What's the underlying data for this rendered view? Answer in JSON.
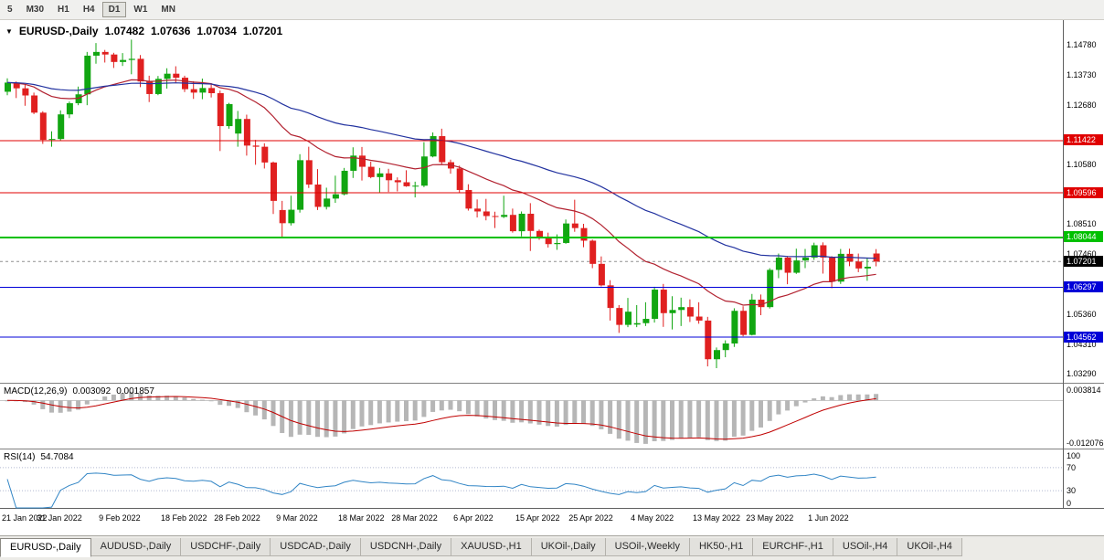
{
  "toolbar": {
    "buttons": [
      "5",
      "M30",
      "H1",
      "H4",
      "D1",
      "W1",
      "MN"
    ],
    "active": "D1"
  },
  "chart_header": {
    "dropdown_icon": "▼",
    "symbol": "EURUSD-,Daily",
    "open": "1.07482",
    "high": "1.07636",
    "low": "1.07034",
    "close": "1.07201"
  },
  "chart_data": {
    "type": "candlestick",
    "title": "EURUSD-,Daily",
    "colors": {
      "up": "#11A611",
      "down": "#E02020"
    },
    "candles": [
      [
        1.1313,
        1.136,
        1.1301,
        1.1345
      ],
      [
        1.1345,
        1.1349,
        1.1291,
        1.1325
      ],
      [
        1.1325,
        1.1338,
        1.1264,
        1.13
      ],
      [
        1.13,
        1.131,
        1.1235,
        1.124
      ],
      [
        1.124,
        1.1245,
        1.1131,
        1.1145
      ],
      [
        1.1145,
        1.1175,
        1.1121,
        1.1148
      ],
      [
        1.1148,
        1.1248,
        1.1141,
        1.1234
      ],
      [
        1.1234,
        1.1279,
        1.1221,
        1.1273
      ],
      [
        1.1273,
        1.1331,
        1.1266,
        1.1304
      ],
      [
        1.1304,
        1.1452,
        1.1266,
        1.1439
      ],
      [
        1.1439,
        1.1483,
        1.1411,
        1.1452
      ],
      [
        1.1452,
        1.1459,
        1.1415,
        1.1443
      ],
      [
        1.1443,
        1.1449,
        1.1396,
        1.1417
      ],
      [
        1.1417,
        1.1448,
        1.1403,
        1.1424
      ],
      [
        1.1424,
        1.1495,
        1.1374,
        1.1428
      ],
      [
        1.1428,
        1.1441,
        1.1329,
        1.1349
      ],
      [
        1.1349,
        1.1369,
        1.1277,
        1.1305
      ],
      [
        1.1305,
        1.1368,
        1.1301,
        1.1358
      ],
      [
        1.1358,
        1.1395,
        1.1324,
        1.1376
      ],
      [
        1.1376,
        1.1402,
        1.1345,
        1.1362
      ],
      [
        1.1362,
        1.1369,
        1.1312,
        1.1322
      ],
      [
        1.1322,
        1.135,
        1.1288,
        1.131
      ],
      [
        1.131,
        1.1359,
        1.1287,
        1.1326
      ],
      [
        1.1326,
        1.1342,
        1.1293,
        1.1308
      ],
      [
        1.1308,
        1.1317,
        1.1106,
        1.1193
      ],
      [
        1.1193,
        1.1274,
        1.1184,
        1.127
      ],
      [
        1.1167,
        1.1246,
        1.1121,
        1.1218
      ],
      [
        1.1218,
        1.1233,
        1.109,
        1.1125
      ],
      [
        1.1125,
        1.1145,
        1.1058,
        1.1121
      ],
      [
        1.1121,
        1.1133,
        1.1045,
        1.1066
      ],
      [
        1.1066,
        1.1069,
        1.0886,
        1.0932
      ],
      [
        1.09,
        1.0932,
        1.0806,
        1.0854
      ],
      [
        1.0854,
        1.095,
        1.0846,
        1.0901
      ],
      [
        1.0901,
        1.1095,
        1.0891,
        1.1074
      ],
      [
        1.1074,
        1.1121,
        1.0977,
        1.0989
      ],
      [
        1.0989,
        1.1043,
        1.09,
        1.0911
      ],
      [
        1.0911,
        1.0978,
        1.0902,
        1.094
      ],
      [
        1.094,
        1.102,
        1.0925,
        1.0955
      ],
      [
        1.0955,
        1.1047,
        1.0951,
        1.1037
      ],
      [
        1.1037,
        1.1119,
        1.1012,
        1.109
      ],
      [
        1.109,
        1.112,
        1.1003,
        1.1051
      ],
      [
        1.1051,
        1.1069,
        1.1011,
        1.1015
      ],
      [
        1.1015,
        1.1047,
        1.0962,
        1.1028
      ],
      [
        1.1028,
        1.1044,
        1.0963,
        1.1004
      ],
      [
        1.1004,
        1.1014,
        1.0965,
        1.0997
      ],
      [
        1.0997,
        1.1039,
        1.0981,
        1.0983
      ],
      [
        1.0983,
        1.0999,
        1.0944,
        1.0985
      ],
      [
        1.0985,
        1.1137,
        1.098,
        1.1087
      ],
      [
        1.1087,
        1.1171,
        1.1084,
        1.1158
      ],
      [
        1.1158,
        1.1184,
        1.1061,
        1.1067
      ],
      [
        1.1067,
        1.1076,
        1.1027,
        1.1045
      ],
      [
        1.1045,
        1.1055,
        1.096,
        1.097
      ],
      [
        1.097,
        1.099,
        1.0898,
        1.0905
      ],
      [
        1.0905,
        1.0937,
        1.0874,
        1.0895
      ],
      [
        1.0895,
        1.0939,
        1.0864,
        1.0879
      ],
      [
        1.0879,
        1.0894,
        1.0837,
        1.0876
      ],
      [
        1.0876,
        1.095,
        1.0872,
        1.0883
      ],
      [
        1.0883,
        1.0905,
        1.0821,
        1.0826
      ],
      [
        1.0826,
        1.0895,
        1.0808,
        1.0887
      ],
      [
        1.0887,
        1.0924,
        1.0757,
        1.0827
      ],
      [
        1.0827,
        1.0832,
        1.0796,
        1.0806
      ],
      [
        1.0806,
        1.0821,
        1.0769,
        1.0781
      ],
      [
        1.0781,
        1.0815,
        1.0761,
        1.0785
      ],
      [
        1.0785,
        1.0867,
        1.0782,
        1.0853
      ],
      [
        1.0853,
        1.0936,
        1.0824,
        1.0837
      ],
      [
        1.0837,
        1.0852,
        1.077,
        1.0793
      ],
      [
        1.0793,
        1.0797,
        1.0697,
        1.0712
      ],
      [
        1.0712,
        1.0738,
        1.0633,
        1.0637
      ],
      [
        1.0637,
        1.0655,
        1.0514,
        1.0558
      ],
      [
        1.0558,
        1.0568,
        1.0471,
        1.0499
      ],
      [
        1.0499,
        1.0593,
        1.0491,
        1.0545
      ],
      [
        1.05,
        1.0568,
        1.0491,
        1.0505
      ],
      [
        1.0505,
        1.0578,
        1.0495,
        1.052
      ],
      [
        1.052,
        1.0632,
        1.0507,
        1.0622
      ],
      [
        1.0622,
        1.0642,
        1.0492,
        1.054
      ],
      [
        1.054,
        1.0599,
        1.0483,
        1.0551
      ],
      [
        1.0551,
        1.0594,
        1.0495,
        1.0561
      ],
      [
        1.0561,
        1.0588,
        1.0509,
        1.0528
      ],
      [
        1.0528,
        1.0578,
        1.0503,
        1.0514
      ],
      [
        1.0514,
        1.0527,
        1.0354,
        1.0379
      ],
      [
        1.0379,
        1.042,
        1.0348,
        1.0411
      ],
      [
        1.0411,
        1.0445,
        1.0386,
        1.0434
      ],
      [
        1.0434,
        1.0557,
        1.0422,
        1.0548
      ],
      [
        1.0548,
        1.0564,
        1.0459,
        1.0464
      ],
      [
        1.0464,
        1.0607,
        1.0462,
        1.0587
      ],
      [
        1.0587,
        1.0605,
        1.0533,
        1.0561
      ],
      [
        1.0561,
        1.0697,
        1.0556,
        1.0691
      ],
      [
        1.0691,
        1.0748,
        1.0662,
        1.0734
      ],
      [
        1.0734,
        1.0739,
        1.0641,
        1.0681
      ],
      [
        1.0681,
        1.0765,
        1.0677,
        1.0724
      ],
      [
        1.0724,
        1.0764,
        1.0697,
        1.0734
      ],
      [
        1.0734,
        1.0786,
        1.0726,
        1.0777
      ],
      [
        1.0777,
        1.0787,
        1.0678,
        1.0734
      ],
      [
        1.0734,
        1.0739,
        1.0627,
        1.065
      ],
      [
        1.065,
        1.0764,
        1.0642,
        1.0747
      ],
      [
        1.0747,
        1.0765,
        1.0704,
        1.072
      ],
      [
        1.072,
        1.0748,
        1.0683,
        1.0696
      ],
      [
        1.0696,
        1.0734,
        1.0653,
        1.0702
      ],
      [
        1.07482,
        1.07636,
        1.07034,
        1.07201
      ]
    ],
    "x_labels": [
      {
        "label": "21 Jan 2022",
        "i": 0
      },
      {
        "label": "31 Jan 2022",
        "i": 6
      },
      {
        "label": "9 Feb 2022",
        "i": 13
      },
      {
        "label": "18 Feb 2022",
        "i": 20
      },
      {
        "label": "28 Feb 2022",
        "i": 26
      },
      {
        "label": "9 Mar 2022",
        "i": 33
      },
      {
        "label": "18 Mar 2022",
        "i": 40
      },
      {
        "label": "28 Mar 2022",
        "i": 46
      },
      {
        "label": "6 Apr 2022",
        "i": 53
      },
      {
        "label": "15 Apr 2022",
        "i": 60
      },
      {
        "label": "25 Apr 2022",
        "i": 66
      },
      {
        "label": "4 May 2022",
        "i": 73
      },
      {
        "label": "13 May 2022",
        "i": 80
      },
      {
        "label": "23 May 2022",
        "i": 86
      },
      {
        "label": "1 Jun 2022",
        "i": 93
      }
    ],
    "y_axis_ticks": [
      {
        "label": "1.14780",
        "price": 1.1478
      },
      {
        "label": "1.13730",
        "price": 1.1373
      },
      {
        "label": "1.12680",
        "price": 1.1268
      },
      {
        "label": "1.10580",
        "price": 1.1058
      },
      {
        "label": "1.08510",
        "price": 1.0851
      },
      {
        "label": "1.07460",
        "price": 1.0746
      },
      {
        "label": "1.05360",
        "price": 1.0536
      },
      {
        "label": "1.04310",
        "price": 1.0431
      },
      {
        "label": "1.03290",
        "price": 1.0329
      }
    ],
    "hlines": [
      {
        "label": "1.11422",
        "price": 1.11422,
        "color": "#E00000",
        "width": 1
      },
      {
        "label": "1.09596",
        "price": 1.09596,
        "color": "#E00000",
        "width": 1
      },
      {
        "label": "1.08044",
        "price": 1.08044,
        "color": "#00C000",
        "width": 2
      },
      {
        "label": "1.06297",
        "price": 1.06297,
        "color": "#0000D8",
        "width": 1
      },
      {
        "label": "1.04562",
        "price": 1.04562,
        "color": "#0000D8",
        "width": 1
      }
    ],
    "current_price": {
      "label": "1.07201",
      "price": 1.07201,
      "bg": "#000000"
    },
    "moving_averages": [
      {
        "type": "ema",
        "period": 20,
        "color": "#B22230"
      },
      {
        "type": "ema",
        "period": 50,
        "color": "#2333A0"
      }
    ],
    "macd": {
      "indicator_label": "MACD(12,26,9)",
      "value_main": "0.003092",
      "value_signal": "0.001857",
      "fast_period": 12,
      "slow_period": 26,
      "signal_period": 9,
      "range": {
        "max": 0.0045,
        "min": -0.0135
      },
      "axis_labels": [
        {
          "label": "0.003814",
          "value": 0.003814
        },
        {
          "label": "-0.012076",
          "value": -0.012076
        }
      ],
      "bar_color": "#B6B6B6",
      "signal_color": "#C00000"
    },
    "rsi": {
      "indicator_label": "RSI(14)",
      "value": "54.7084",
      "period": 14,
      "levels": [
        70,
        30
      ],
      "axis_labels": [
        {
          "label": "100",
          "value": 100
        },
        {
          "label": "70",
          "value": 70
        },
        {
          "label": "30",
          "value": 30
        },
        {
          "label": "0",
          "value": 0
        }
      ],
      "line_color": "#3185C5",
      "level_color": "#B0B8D0"
    }
  },
  "tabs": {
    "active_index": 0,
    "items": [
      "EURUSD-,Daily",
      "AUDUSD-,Daily",
      "USDCHF-,Daily",
      "USDCAD-,Daily",
      "USDCNH-,Daily",
      "XAUUSD-,H1",
      "UKOil-,Daily",
      "USOil-,Weekly",
      "HK50-,H1",
      "EURCHF-,H1",
      "USOil-,H4",
      "UKOil-,H4"
    ]
  }
}
